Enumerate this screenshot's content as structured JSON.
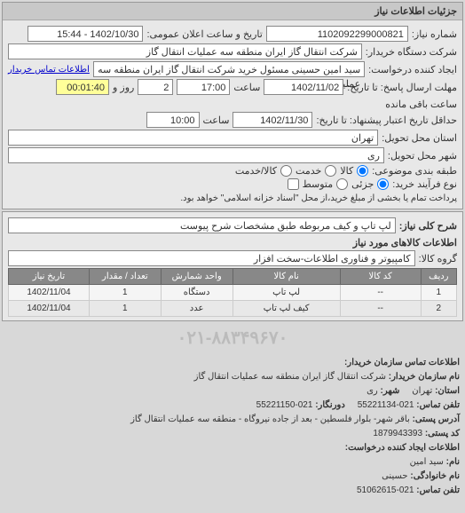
{
  "panel1": {
    "title": "جزئیات اطلاعات نیاز",
    "request_no_label": "شماره نیاز:",
    "request_no": "1102092299000821",
    "announce_label": "تاریخ و ساعت اعلان عمومی:",
    "announce_value": "1402/10/30 - 15:44",
    "buyer_org_label": "شرکت دستگاه خریدار:",
    "buyer_org": "شرکت انتقال گاز ایران منطقه سه عملیات انتقال گاز",
    "creator_label": "ایجاد کننده درخواست:",
    "creator": "سید امین حسینی مسئول خرید شرکت انتقال گاز ایران منطقه سه عملیات انتق",
    "contact_link": "اطلاعات تماس خریدار",
    "deadline_label": "مهلت ارسال پاسخ: تا تاریخ:",
    "deadline_date": "1402/11/02",
    "time_label": "ساعت",
    "deadline_time": "17:00",
    "days_label": "روز و",
    "days_value": "2",
    "remain_label": "ساعت باقی مانده",
    "remain_time": "00:01:40",
    "validity_label": "حداقل تاریخ اعتبار پیشنهاد: تا تاریخ:",
    "validity_date": "1402/11/30",
    "validity_time": "10:00",
    "province_label": "استان محل تحویل:",
    "province": "تهران",
    "city_label": "شهر محل تحویل:",
    "city": "ری",
    "subject_class_label": "طبقه بندی موضوعی:",
    "radio_goods": "کالا",
    "radio_service": "خدمت",
    "radio_goods_service": "کالا/خدمت",
    "process_label": "نوع فرآیند خرید:",
    "radio_minor": "جزئی",
    "radio_medium": "متوسط",
    "process_note": "پرداخت تمام یا بخشی از مبلغ خرید،از محل \"اسناد خزانه اسلامی\" خواهد بود."
  },
  "panel2": {
    "desc_label": "شرح کلی نیاز:",
    "desc": "لپ تاپ و کیف مربوطه طبق مشخصات شرح پیوست",
    "items_title": "اطلاعات کالاهای مورد نیاز",
    "group_label": "گروه کالا:",
    "group": "کامپیوتر و فناوری اطلاعات-سخت افزار",
    "table_headers": [
      "ردیف",
      "کد کالا",
      "نام کالا",
      "واحد شمارش",
      "تعداد / مقدار",
      "تاریخ نیاز"
    ],
    "rows": [
      [
        "1",
        "--",
        "لپ تاپ",
        "دستگاه",
        "1",
        "1402/11/04"
      ],
      [
        "2",
        "--",
        "کیف لپ تاپ",
        "عدد",
        "1",
        "1402/11/04"
      ]
    ]
  },
  "watermark": "۰۲۱-۸۸۳۴۹۶۷۰",
  "footer": {
    "title1": "اطلاعات تماس سازمان خریدار:",
    "org_label": "نام سازمان خریدار:",
    "org": "شرکت انتقال گاز ایران منطقه سه عملیات انتقال گاز",
    "province_label": "استان:",
    "province": "تهران",
    "city_label": "شهر:",
    "city": "ری",
    "phone_label": "تلفن تماس:",
    "phone": "021-55221134",
    "fax_label": "دورنگار:",
    "fax": "021-55221150",
    "address_label": "آدرس پستی:",
    "address": "باقر شهر- بلوار فلسطین - بعد از جاده نیروگاه - منطقه سه عملیات انتقال گاز",
    "postal_label": "کد پستی:",
    "postal": "1879943393",
    "title2": "اطلاعات ایجاد کننده درخواست:",
    "fname_label": "نام:",
    "fname": "سید امین",
    "lname_label": "نام خانوادگی:",
    "lname": "حسینی",
    "contact_phone_label": "تلفن تماس:",
    "contact_phone": "021-51062615"
  }
}
